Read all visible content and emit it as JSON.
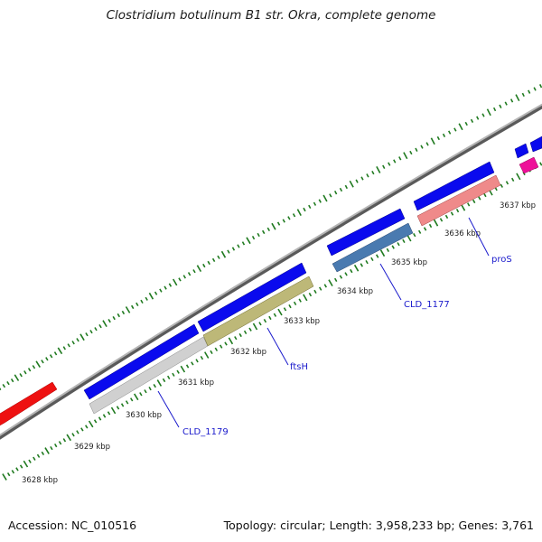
{
  "title": "Clostridium botulinum B1 str. Okra, complete genome",
  "footer": {
    "accession": "Accession: NC_010516",
    "topology": "Topology: circular; Length: 3,958,233 bp; Genes: 3,761"
  },
  "kbp_ticks": [
    "3628 kbp",
    "3629 kbp",
    "3630 kbp",
    "3631 kbp",
    "3632 kbp",
    "3633 kbp",
    "3634 kbp",
    "3635 kbp",
    "3636 kbp",
    "3637 kbp"
  ],
  "gene_labels": [
    "CLD_1179",
    "ftsH",
    "CLD_1177",
    "proS"
  ],
  "colors": {
    "backbone": "#8c8c8c",
    "tick": "#1f7a1f",
    "cds_forward": "#0a0aee",
    "red_feature": "#ee1111",
    "gene_label": "#1a1acc",
    "gene_grey": "#cfcfcf",
    "gene_khaki": "#bdb878",
    "gene_steelblue": "#4a7ab0",
    "gene_salmon": "#ef8a8a",
    "gene_magenta": "#ee1199"
  }
}
